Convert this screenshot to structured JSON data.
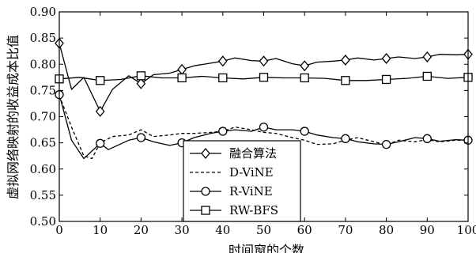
{
  "chart_data": {
    "type": "line",
    "title": "",
    "xlabel": "时间窗的个数",
    "ylabel": "虚拟网络映射的收益成本比值",
    "xlim": [
      0,
      100
    ],
    "ylim": [
      0.5,
      0.9
    ],
    "x_ticks": [
      0,
      10,
      20,
      30,
      40,
      50,
      60,
      70,
      80,
      90,
      100
    ],
    "y_ticks": [
      0.5,
      0.55,
      0.6,
      0.65,
      0.7,
      0.75,
      0.8,
      0.85,
      0.9
    ],
    "x_tick_labels": [
      "0",
      "10",
      "20",
      "30",
      "40",
      "50",
      "60",
      "70",
      "80",
      "90",
      "100"
    ],
    "y_tick_labels": [
      "0.50",
      "0.55",
      "0.60",
      "0.65",
      "0.70",
      "0.75",
      "0.80",
      "0.85",
      "0.90"
    ],
    "grid": false,
    "legend_position": "lower-left",
    "series": [
      {
        "name": "融合算法",
        "line": "solid",
        "marker": "diamond",
        "marker_x": [
          0,
          10,
          20,
          30,
          40,
          50,
          60,
          70,
          80,
          90,
          100
        ],
        "marker_y": [
          0.84,
          0.71,
          0.763,
          0.79,
          0.806,
          0.806,
          0.797,
          0.808,
          0.811,
          0.814,
          0.819
        ],
        "x": [
          0,
          3,
          6,
          10,
          13,
          17,
          20,
          23,
          27,
          30,
          33,
          37,
          40,
          43,
          47,
          50,
          53,
          57,
          60,
          63,
          67,
          70,
          73,
          77,
          80,
          83,
          87,
          90,
          93,
          97,
          100
        ],
        "y": [
          0.84,
          0.752,
          0.775,
          0.71,
          0.752,
          0.778,
          0.763,
          0.78,
          0.783,
          0.79,
          0.797,
          0.802,
          0.806,
          0.812,
          0.807,
          0.806,
          0.811,
          0.801,
          0.797,
          0.804,
          0.806,
          0.808,
          0.812,
          0.808,
          0.811,
          0.814,
          0.811,
          0.814,
          0.819,
          0.818,
          0.819
        ]
      },
      {
        "name": "D-ViNE",
        "line": "dashed",
        "marker": "none",
        "x": [
          0,
          3,
          6,
          8,
          10,
          13,
          17,
          20,
          23,
          27,
          30,
          33,
          37,
          40,
          43,
          47,
          50,
          53,
          57,
          60,
          63,
          67,
          70,
          73,
          77,
          80,
          83,
          87,
          90,
          93,
          97,
          100
        ],
        "y": [
          0.74,
          0.68,
          0.625,
          0.62,
          0.65,
          0.662,
          0.665,
          0.675,
          0.662,
          0.665,
          0.668,
          0.668,
          0.67,
          0.672,
          0.68,
          0.675,
          0.67,
          0.668,
          0.66,
          0.655,
          0.647,
          0.648,
          0.655,
          0.66,
          0.652,
          0.646,
          0.655,
          0.652,
          0.656,
          0.652,
          0.655,
          0.655
        ]
      },
      {
        "name": "R-ViNE",
        "line": "solid",
        "marker": "circle",
        "marker_x": [
          0,
          10,
          20,
          30,
          40,
          50,
          60,
          70,
          80,
          90,
          100
        ],
        "marker_y": [
          0.742,
          0.649,
          0.66,
          0.65,
          0.672,
          0.68,
          0.672,
          0.658,
          0.647,
          0.658,
          0.655
        ],
        "x": [
          0,
          3,
          6,
          10,
          12,
          17,
          20,
          23,
          27,
          30,
          33,
          37,
          40,
          43,
          47,
          50,
          53,
          57,
          60,
          63,
          67,
          70,
          73,
          77,
          80,
          83,
          87,
          90,
          93,
          97,
          100
        ],
        "y": [
          0.742,
          0.655,
          0.62,
          0.649,
          0.637,
          0.655,
          0.66,
          0.652,
          0.645,
          0.65,
          0.66,
          0.668,
          0.672,
          0.675,
          0.672,
          0.68,
          0.675,
          0.675,
          0.672,
          0.665,
          0.66,
          0.658,
          0.652,
          0.648,
          0.647,
          0.652,
          0.66,
          0.658,
          0.653,
          0.656,
          0.655
        ]
      },
      {
        "name": "RW-BFS",
        "line": "solid",
        "marker": "square",
        "marker_x": [
          0,
          10,
          20,
          30,
          40,
          50,
          60,
          70,
          80,
          90,
          100
        ],
        "marker_y": [
          0.772,
          0.769,
          0.778,
          0.774,
          0.774,
          0.775,
          0.774,
          0.769,
          0.771,
          0.777,
          0.775
        ],
        "x": [
          0,
          5,
          10,
          15,
          20,
          25,
          30,
          35,
          40,
          45,
          50,
          55,
          60,
          65,
          70,
          75,
          80,
          85,
          90,
          95,
          100
        ],
        "y": [
          0.772,
          0.775,
          0.769,
          0.771,
          0.778,
          0.774,
          0.774,
          0.777,
          0.774,
          0.772,
          0.775,
          0.774,
          0.774,
          0.773,
          0.769,
          0.769,
          0.771,
          0.773,
          0.777,
          0.773,
          0.775
        ]
      }
    ]
  }
}
